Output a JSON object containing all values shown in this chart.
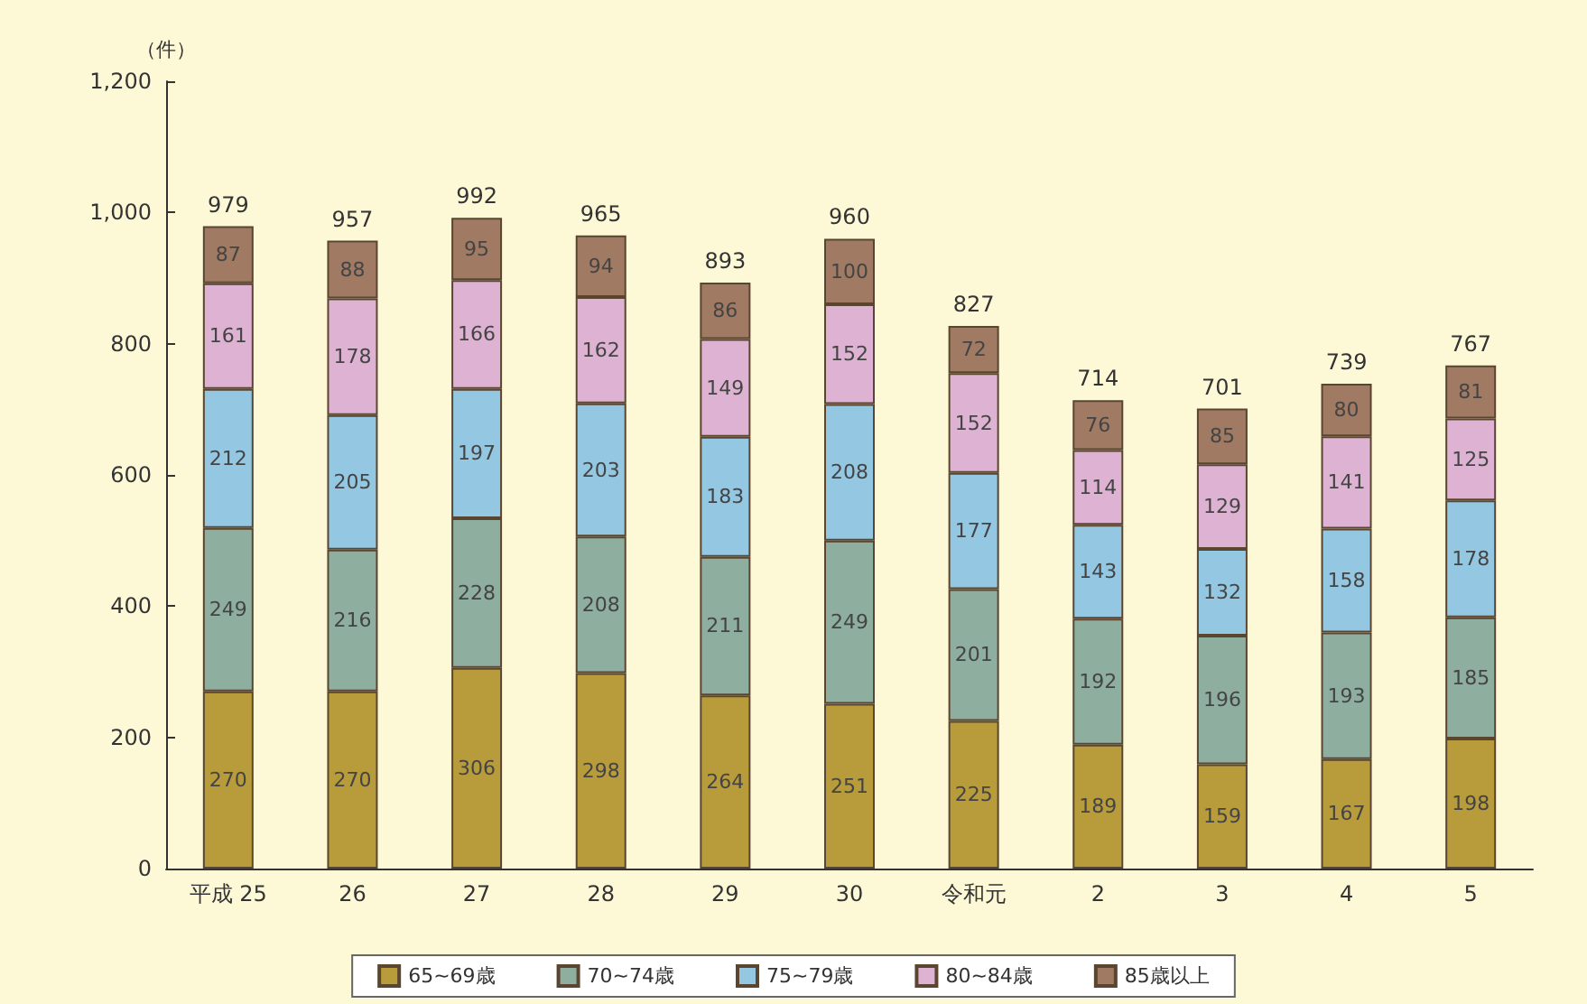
{
  "chart_data": {
    "type": "bar",
    "stacked": true,
    "ylabel": "（件）",
    "categories": [
      "平成 25",
      "26",
      "27",
      "28",
      "29",
      "30",
      "令和元",
      "2",
      "3",
      "4",
      "5"
    ],
    "series": [
      {
        "name": "65~69歳",
        "color": "#b89c3c",
        "values": [
          270,
          270,
          306,
          298,
          264,
          251,
          225,
          189,
          159,
          167,
          198
        ]
      },
      {
        "name": "70~74歳",
        "color": "#8eaea0",
        "values": [
          249,
          216,
          228,
          208,
          211,
          249,
          201,
          192,
          196,
          193,
          185
        ]
      },
      {
        "name": "75~79歳",
        "color": "#94c8e2",
        "values": [
          212,
          205,
          197,
          203,
          183,
          208,
          177,
          143,
          132,
          158,
          178
        ]
      },
      {
        "name": "80~84歳",
        "color": "#deb2d2",
        "values": [
          161,
          178,
          166,
          162,
          149,
          152,
          152,
          114,
          129,
          141,
          125
        ]
      },
      {
        "name": "85歳以上",
        "color": "#a07a62",
        "values": [
          87,
          88,
          95,
          94,
          86,
          100,
          72,
          76,
          85,
          80,
          81
        ]
      }
    ],
    "totals": [
      "979",
      "957",
      "992",
      "965",
      "893",
      "960",
      "827",
      "714",
      "701",
      "739",
      "767"
    ],
    "data_labels": true,
    "ylim": [
      0,
      1200
    ],
    "yticks": [
      0,
      200,
      400,
      600,
      800,
      {
        "value": 1000,
        "label": "1,000"
      },
      {
        "value": 1200,
        "label": "1,200"
      }
    ],
    "grid": false,
    "legend": "bottom"
  }
}
